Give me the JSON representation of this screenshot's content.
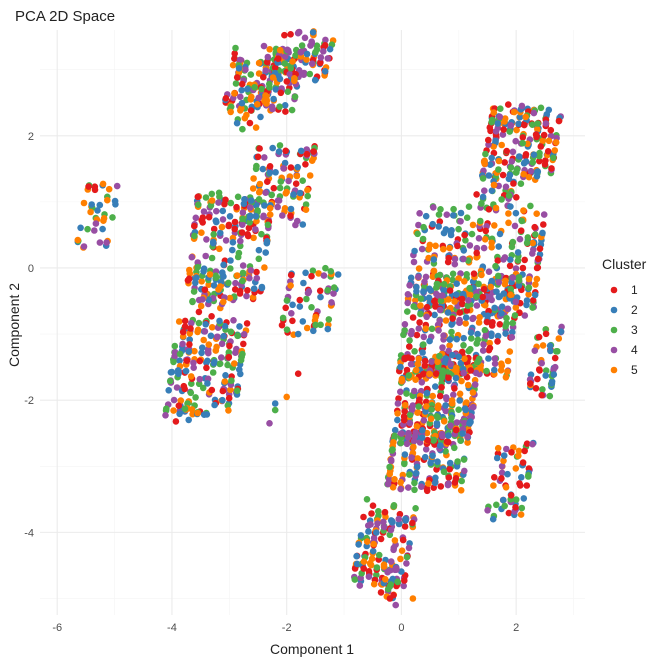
{
  "chart_data": {
    "type": "scatter",
    "title": "PCA 2D Space",
    "xlabel": "Component 1",
    "ylabel": "Component 2",
    "xlim": [
      -6.3,
      3.2
    ],
    "ylim": [
      -5.25,
      3.6
    ],
    "x_ticks": [
      -6,
      -4,
      -2,
      0,
      2
    ],
    "y_ticks": [
      -4,
      -2,
      0,
      2
    ],
    "x_tick_labels": [
      "-6",
      "-4",
      "-2",
      "0",
      "2"
    ],
    "y_tick_labels": [
      "-4",
      "-2",
      "0",
      "2"
    ],
    "grid": true,
    "legend": {
      "title": "Cluster",
      "placement": "right",
      "entries": [
        "1",
        "2",
        "3",
        "4",
        "5"
      ]
    },
    "series": [
      {
        "name": "1",
        "color": "#E41A1C"
      },
      {
        "name": "2",
        "color": "#377EB8"
      },
      {
        "name": "3",
        "color": "#4DAF4A"
      },
      {
        "name": "4",
        "color": "#984EA3"
      },
      {
        "name": "5",
        "color": "#FF7F00"
      }
    ],
    "point_groups": [
      {
        "center": [
          -5.3,
          0.8
        ],
        "width": 0.65,
        "height": 0.45,
        "n": 40
      },
      {
        "center": [
          -2.4,
          2.85
        ],
        "width": 1.3,
        "height": 0.45,
        "n": 160
      },
      {
        "center": [
          -1.7,
          3.2
        ],
        "width": 1.0,
        "height": 0.35,
        "n": 80
      },
      {
        "center": [
          -2.6,
          2.45
        ],
        "width": 0.5,
        "height": 0.3,
        "n": 30
      },
      {
        "center": [
          -2.1,
          1.25
        ],
        "width": 1.1,
        "height": 0.55,
        "n": 120
      },
      {
        "center": [
          -3.0,
          0.3
        ],
        "width": 1.4,
        "height": 0.75,
        "n": 220
      },
      {
        "center": [
          -3.2,
          -0.4
        ],
        "width": 0.6,
        "height": 0.3,
        "n": 30
      },
      {
        "center": [
          -1.6,
          -0.5
        ],
        "width": 0.9,
        "height": 0.45,
        "n": 60
      },
      {
        "center": [
          -3.4,
          -1.5
        ],
        "width": 1.3,
        "height": 0.65,
        "n": 200
      },
      {
        "center": [
          -3.6,
          -2.0
        ],
        "width": 0.6,
        "height": 0.3,
        "n": 20
      },
      {
        "center": [
          2.1,
          1.9
        ],
        "width": 1.3,
        "height": 0.5,
        "n": 200
      },
      {
        "center": [
          1.7,
          1.2
        ],
        "width": 0.8,
        "height": 0.3,
        "n": 40
      },
      {
        "center": [
          1.3,
          0.1
        ],
        "width": 2.3,
        "height": 0.75,
        "n": 320
      },
      {
        "center": [
          1.0,
          -0.9
        ],
        "width": 2.0,
        "height": 0.7,
        "n": 320
      },
      {
        "center": [
          2.5,
          -1.4
        ],
        "width": 0.5,
        "height": 0.5,
        "n": 50
      },
      {
        "center": [
          0.6,
          -2.0
        ],
        "width": 1.4,
        "height": 0.6,
        "n": 220
      },
      {
        "center": [
          0.5,
          -2.7
        ],
        "width": 1.4,
        "height": 0.6,
        "n": 220
      },
      {
        "center": [
          1.9,
          -3.2
        ],
        "width": 0.7,
        "height": 0.5,
        "n": 60
      },
      {
        "center": [
          -0.3,
          -4.2
        ],
        "width": 1.0,
        "height": 0.55,
        "n": 140
      },
      {
        "center": [
          -0.1,
          -4.7
        ],
        "width": 0.5,
        "height": 0.25,
        "n": 30
      }
    ],
    "outliers": [
      [
        -1.8,
        -1.6
      ],
      [
        -2.2,
        -2.05
      ],
      [
        -2.2,
        -2.15
      ],
      [
        -2.3,
        -2.35
      ],
      [
        -2.0,
        -1.95
      ],
      [
        -1.9,
        -0.8
      ],
      [
        -1.8,
        -1.0
      ],
      [
        -0.6,
        -3.5
      ],
      [
        -0.1,
        -5.1
      ],
      [
        0.2,
        -5.0
      ],
      [
        -0.2,
        -5.0
      ],
      [
        1.6,
        -3.8
      ],
      [
        1.8,
        -3.6
      ]
    ]
  }
}
